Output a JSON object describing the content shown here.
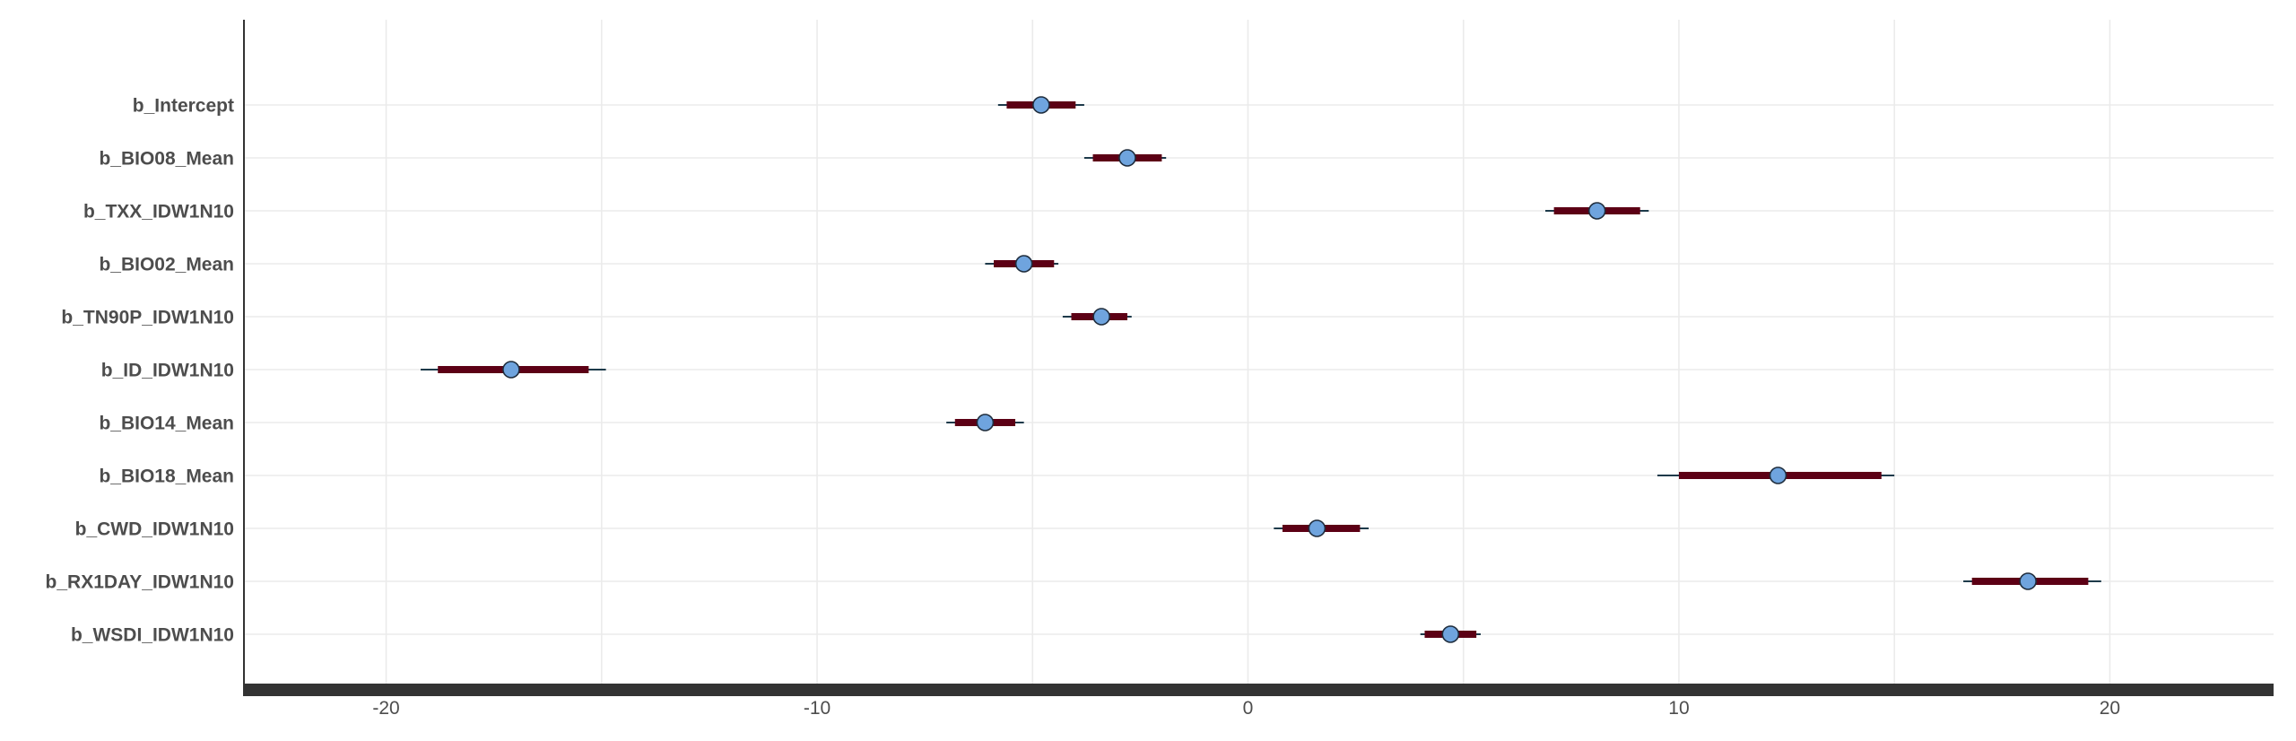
{
  "chart_data": {
    "type": "interval",
    "title": "",
    "xlabel": "",
    "ylabel": "",
    "xlim": [
      -23.3,
      23.8
    ],
    "x_ticks": [
      -20,
      -10,
      0,
      10,
      20
    ],
    "grid": true,
    "legend": "none",
    "colors": {
      "inner_interval": "#5c0015",
      "outer_interval": "#1d3a4a",
      "point_fill": "#6fa4de",
      "point_stroke": "#1f2d3d",
      "grid": "#ebebeb",
      "axis": "#333333",
      "bottom_bar": "#333333"
    },
    "parameters": [
      {
        "label": "b_Intercept",
        "estimate": -4.8,
        "inner": [
          -5.6,
          -4.0
        ],
        "outer": [
          -5.8,
          -3.8
        ]
      },
      {
        "label": "b_BIO08_Mean",
        "estimate": -2.8,
        "inner": [
          -3.6,
          -2.0
        ],
        "outer": [
          -3.8,
          -1.9
        ]
      },
      {
        "label": "b_TXX_IDW1N10",
        "estimate": 8.1,
        "inner": [
          7.1,
          9.1
        ],
        "outer": [
          6.9,
          9.3
        ]
      },
      {
        "label": "b_BIO02_Mean",
        "estimate": -5.2,
        "inner": [
          -5.9,
          -4.5
        ],
        "outer": [
          -6.1,
          -4.4
        ]
      },
      {
        "label": "b_TN90P_IDW1N10",
        "estimate": -3.4,
        "inner": [
          -4.1,
          -2.8
        ],
        "outer": [
          -4.3,
          -2.7
        ]
      },
      {
        "label": "b_ID_IDW1N10",
        "estimate": -17.1,
        "inner": [
          -18.8,
          -15.3
        ],
        "outer": [
          -19.2,
          -14.9
        ]
      },
      {
        "label": "b_BIO14_Mean",
        "estimate": -6.1,
        "inner": [
          -6.8,
          -5.4
        ],
        "outer": [
          -7.0,
          -5.2
        ]
      },
      {
        "label": "b_BIO18_Mean",
        "estimate": 12.3,
        "inner": [
          10.0,
          14.7
        ],
        "outer": [
          9.5,
          15.0
        ]
      },
      {
        "label": "b_CWD_IDW1N10",
        "estimate": 1.6,
        "inner": [
          0.8,
          2.6
        ],
        "outer": [
          0.6,
          2.8
        ]
      },
      {
        "label": "b_RX1DAY_IDW1N10",
        "estimate": 18.1,
        "inner": [
          16.8,
          19.5
        ],
        "outer": [
          16.6,
          19.8
        ]
      },
      {
        "label": "b_WSDI_IDW1N10",
        "estimate": 4.7,
        "inner": [
          4.1,
          5.3
        ],
        "outer": [
          4.0,
          5.4
        ]
      }
    ]
  }
}
